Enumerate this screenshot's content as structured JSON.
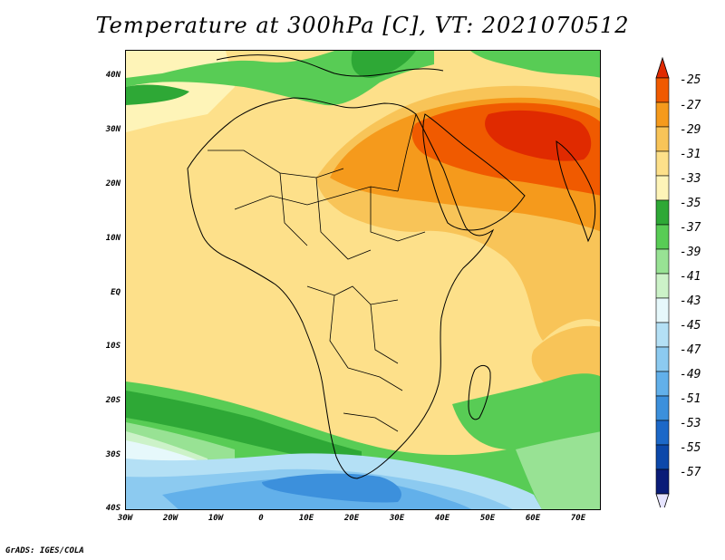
{
  "title": "Temperature at 300hPa [C], VT: 2021070512",
  "footer": "GrADS: IGES/COLA",
  "map": {
    "y_axis_labels": [
      "40N",
      "30N",
      "20N",
      "10N",
      "EQ",
      "10S",
      "20S",
      "30S",
      "40S"
    ],
    "x_axis_labels": [
      "30W",
      "20W",
      "10W",
      "0",
      "10E",
      "20E",
      "30E",
      "40E",
      "50E",
      "60E",
      "70E"
    ]
  },
  "colorbar": {
    "labels": [
      "-25",
      "-27",
      "-29",
      "-31",
      "-33",
      "-35",
      "-37",
      "-39",
      "-41",
      "-43",
      "-45",
      "-47",
      "-49",
      "-51",
      "-53",
      "-55",
      "-57"
    ],
    "colors": [
      "#e02a00",
      "#f05a00",
      "#f59a1c",
      "#f8c458",
      "#fde08a",
      "#fef4b8",
      "#2ea836",
      "#58cc55",
      "#98e294",
      "#ccf2c8",
      "#e6f8fb",
      "#b4e0f5",
      "#8ccaf0",
      "#62b0ea",
      "#3c90dc",
      "#1c68c8",
      "#0c48aa",
      "#0a1c78",
      "#e6e4ff"
    ]
  },
  "chart_data": {
    "type": "heatmap",
    "title": "Temperature at 300hPa [C], VT: 2021070512",
    "variable": "Temperature at 300hPa",
    "units": "C",
    "valid_time": "2021070512",
    "xlim": [
      -30,
      75
    ],
    "ylim": [
      -40,
      45
    ],
    "x_ticks": [
      "30W",
      "20W",
      "10W",
      "0",
      "10E",
      "20E",
      "30E",
      "40E",
      "50E",
      "60E",
      "70E"
    ],
    "y_ticks": [
      "40N",
      "30N",
      "20N",
      "10N",
      "EQ",
      "10S",
      "20S",
      "30S",
      "40S"
    ],
    "contour_levels": [
      -25,
      -27,
      -29,
      -31,
      -33,
      -35,
      -37,
      -39,
      -41,
      -43,
      -45,
      -47,
      -49,
      -51,
      -53,
      -55,
      -57
    ]
  }
}
